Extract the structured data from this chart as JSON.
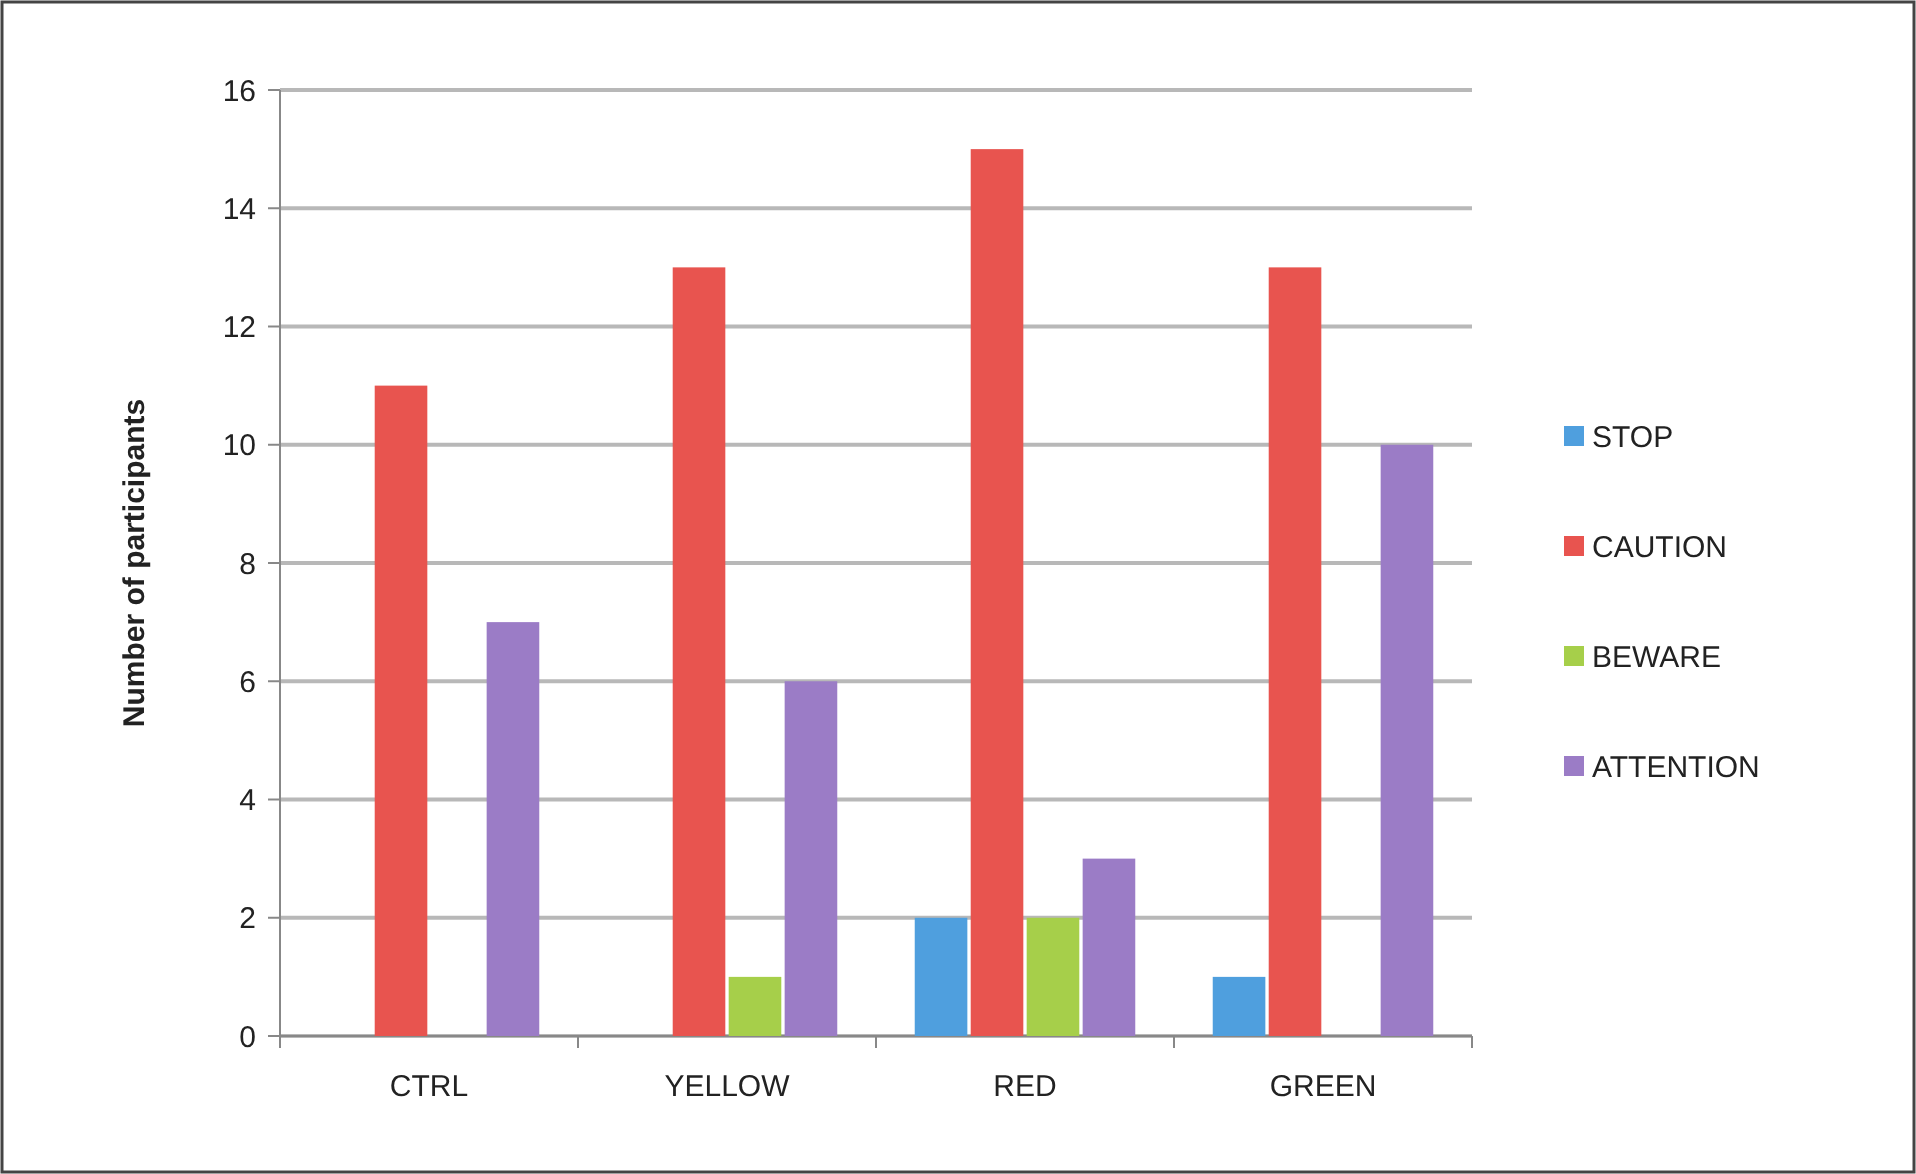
{
  "chart_data": {
    "type": "bar",
    "ylabel": "Number of participants",
    "categories": [
      "CTRL",
      "YELLOW",
      "RED",
      "GREEN"
    ],
    "series": [
      {
        "name": "STOP",
        "color": "#4f9fde",
        "values": [
          0,
          0,
          2,
          1
        ]
      },
      {
        "name": "CAUTION",
        "color": "#e8544f",
        "values": [
          11,
          13,
          15,
          13
        ]
      },
      {
        "name": "BEWARE",
        "color": "#a6cf4a",
        "values": [
          0,
          1,
          2,
          0
        ]
      },
      {
        "name": "ATTENTION",
        "color": "#9b7cc6",
        "values": [
          7,
          6,
          3,
          10
        ]
      }
    ],
    "ylim": [
      0,
      16
    ],
    "yticks": [
      0,
      2,
      4,
      6,
      8,
      10,
      12,
      14,
      16
    ],
    "grid": "y",
    "legend": "right"
  }
}
